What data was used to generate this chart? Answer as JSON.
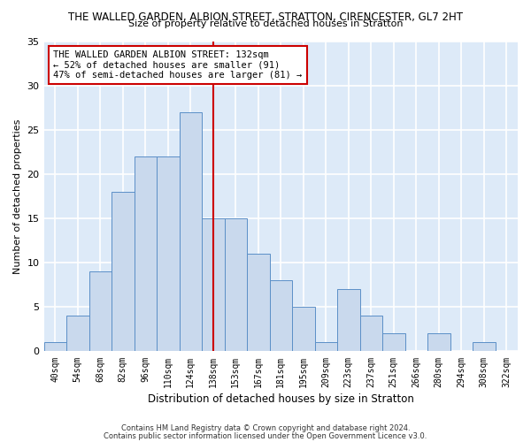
{
  "title": "THE WALLED GARDEN, ALBION STREET, STRATTON, CIRENCESTER, GL7 2HT",
  "subtitle": "Size of property relative to detached houses in Stratton",
  "xlabel": "Distribution of detached houses by size in Stratton",
  "ylabel": "Number of detached properties",
  "bar_color": "#c9d9ed",
  "bar_edge_color": "#5b8fc7",
  "background_color": "#ddeaf8",
  "grid_color": "#ffffff",
  "categories": [
    "40sqm",
    "54sqm",
    "68sqm",
    "82sqm",
    "96sqm",
    "110sqm",
    "124sqm",
    "138sqm",
    "153sqm",
    "167sqm",
    "181sqm",
    "195sqm",
    "209sqm",
    "223sqm",
    "237sqm",
    "251sqm",
    "266sqm",
    "280sqm",
    "294sqm",
    "308sqm",
    "322sqm"
  ],
  "values": [
    1,
    4,
    9,
    18,
    22,
    22,
    27,
    15,
    15,
    11,
    8,
    5,
    1,
    7,
    4,
    2,
    0,
    2,
    0,
    1,
    0
  ],
  "vline_x_index": 7,
  "vline_color": "#cc0000",
  "annotation_text": "THE WALLED GARDEN ALBION STREET: 132sqm\n← 52% of detached houses are smaller (91)\n47% of semi-detached houses are larger (81) →",
  "annotation_box_color": "white",
  "annotation_box_edge_color": "#cc0000",
  "ylim": [
    0,
    35
  ],
  "yticks": [
    0,
    5,
    10,
    15,
    20,
    25,
    30,
    35
  ],
  "footer1": "Contains HM Land Registry data © Crown copyright and database right 2024.",
  "footer2": "Contains public sector information licensed under the Open Government Licence v3.0."
}
